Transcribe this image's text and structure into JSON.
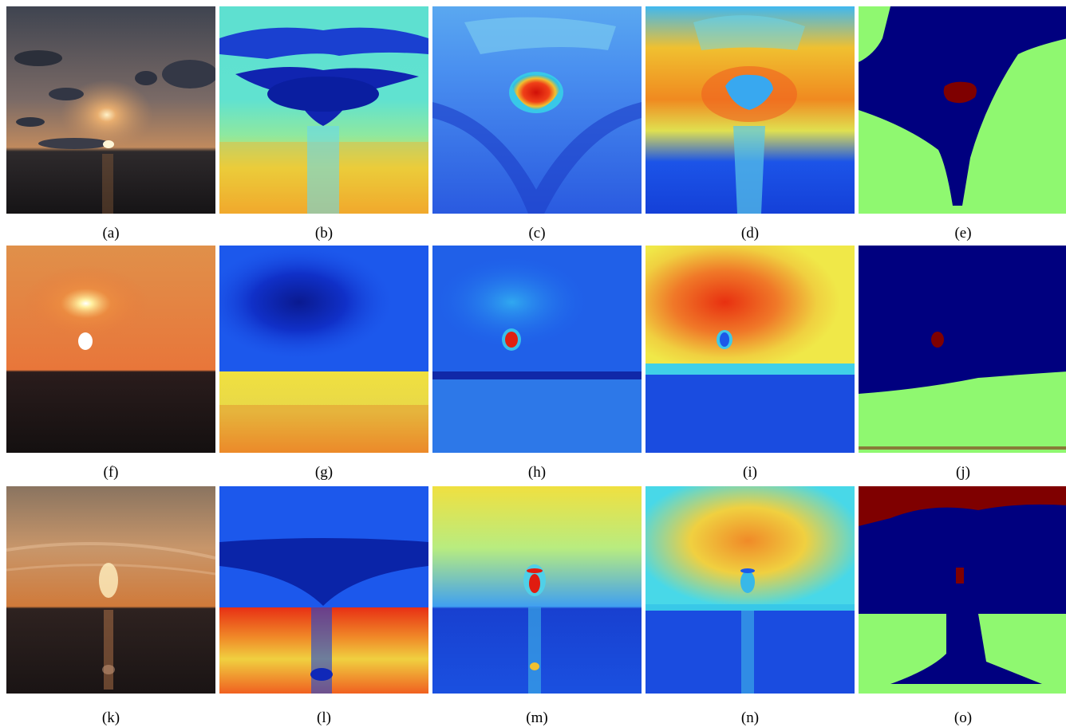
{
  "figure": {
    "rows": [
      {
        "captions": [
          "(a)",
          "(b)",
          "(c)",
          "(d)",
          "(e)"
        ]
      },
      {
        "captions": [
          "(f)",
          "(g)",
          "(h)",
          "(i)",
          "(j)"
        ]
      },
      {
        "captions": [
          "(k)",
          "(l)",
          "(m)",
          "(n)",
          "(o)"
        ]
      }
    ]
  },
  "colors": {
    "jet_dark_blue": "#00007f",
    "jet_blue": "#0a3fe0",
    "jet_cyan": "#38d8f0",
    "jet_yellow": "#f4e83a",
    "jet_orange": "#f58a1e",
    "jet_red": "#e01f10",
    "jet_dark_red": "#7f0000",
    "segment_green": "#8ff870",
    "segment_blue": "#00007f",
    "segment_red": "#7f0000"
  }
}
